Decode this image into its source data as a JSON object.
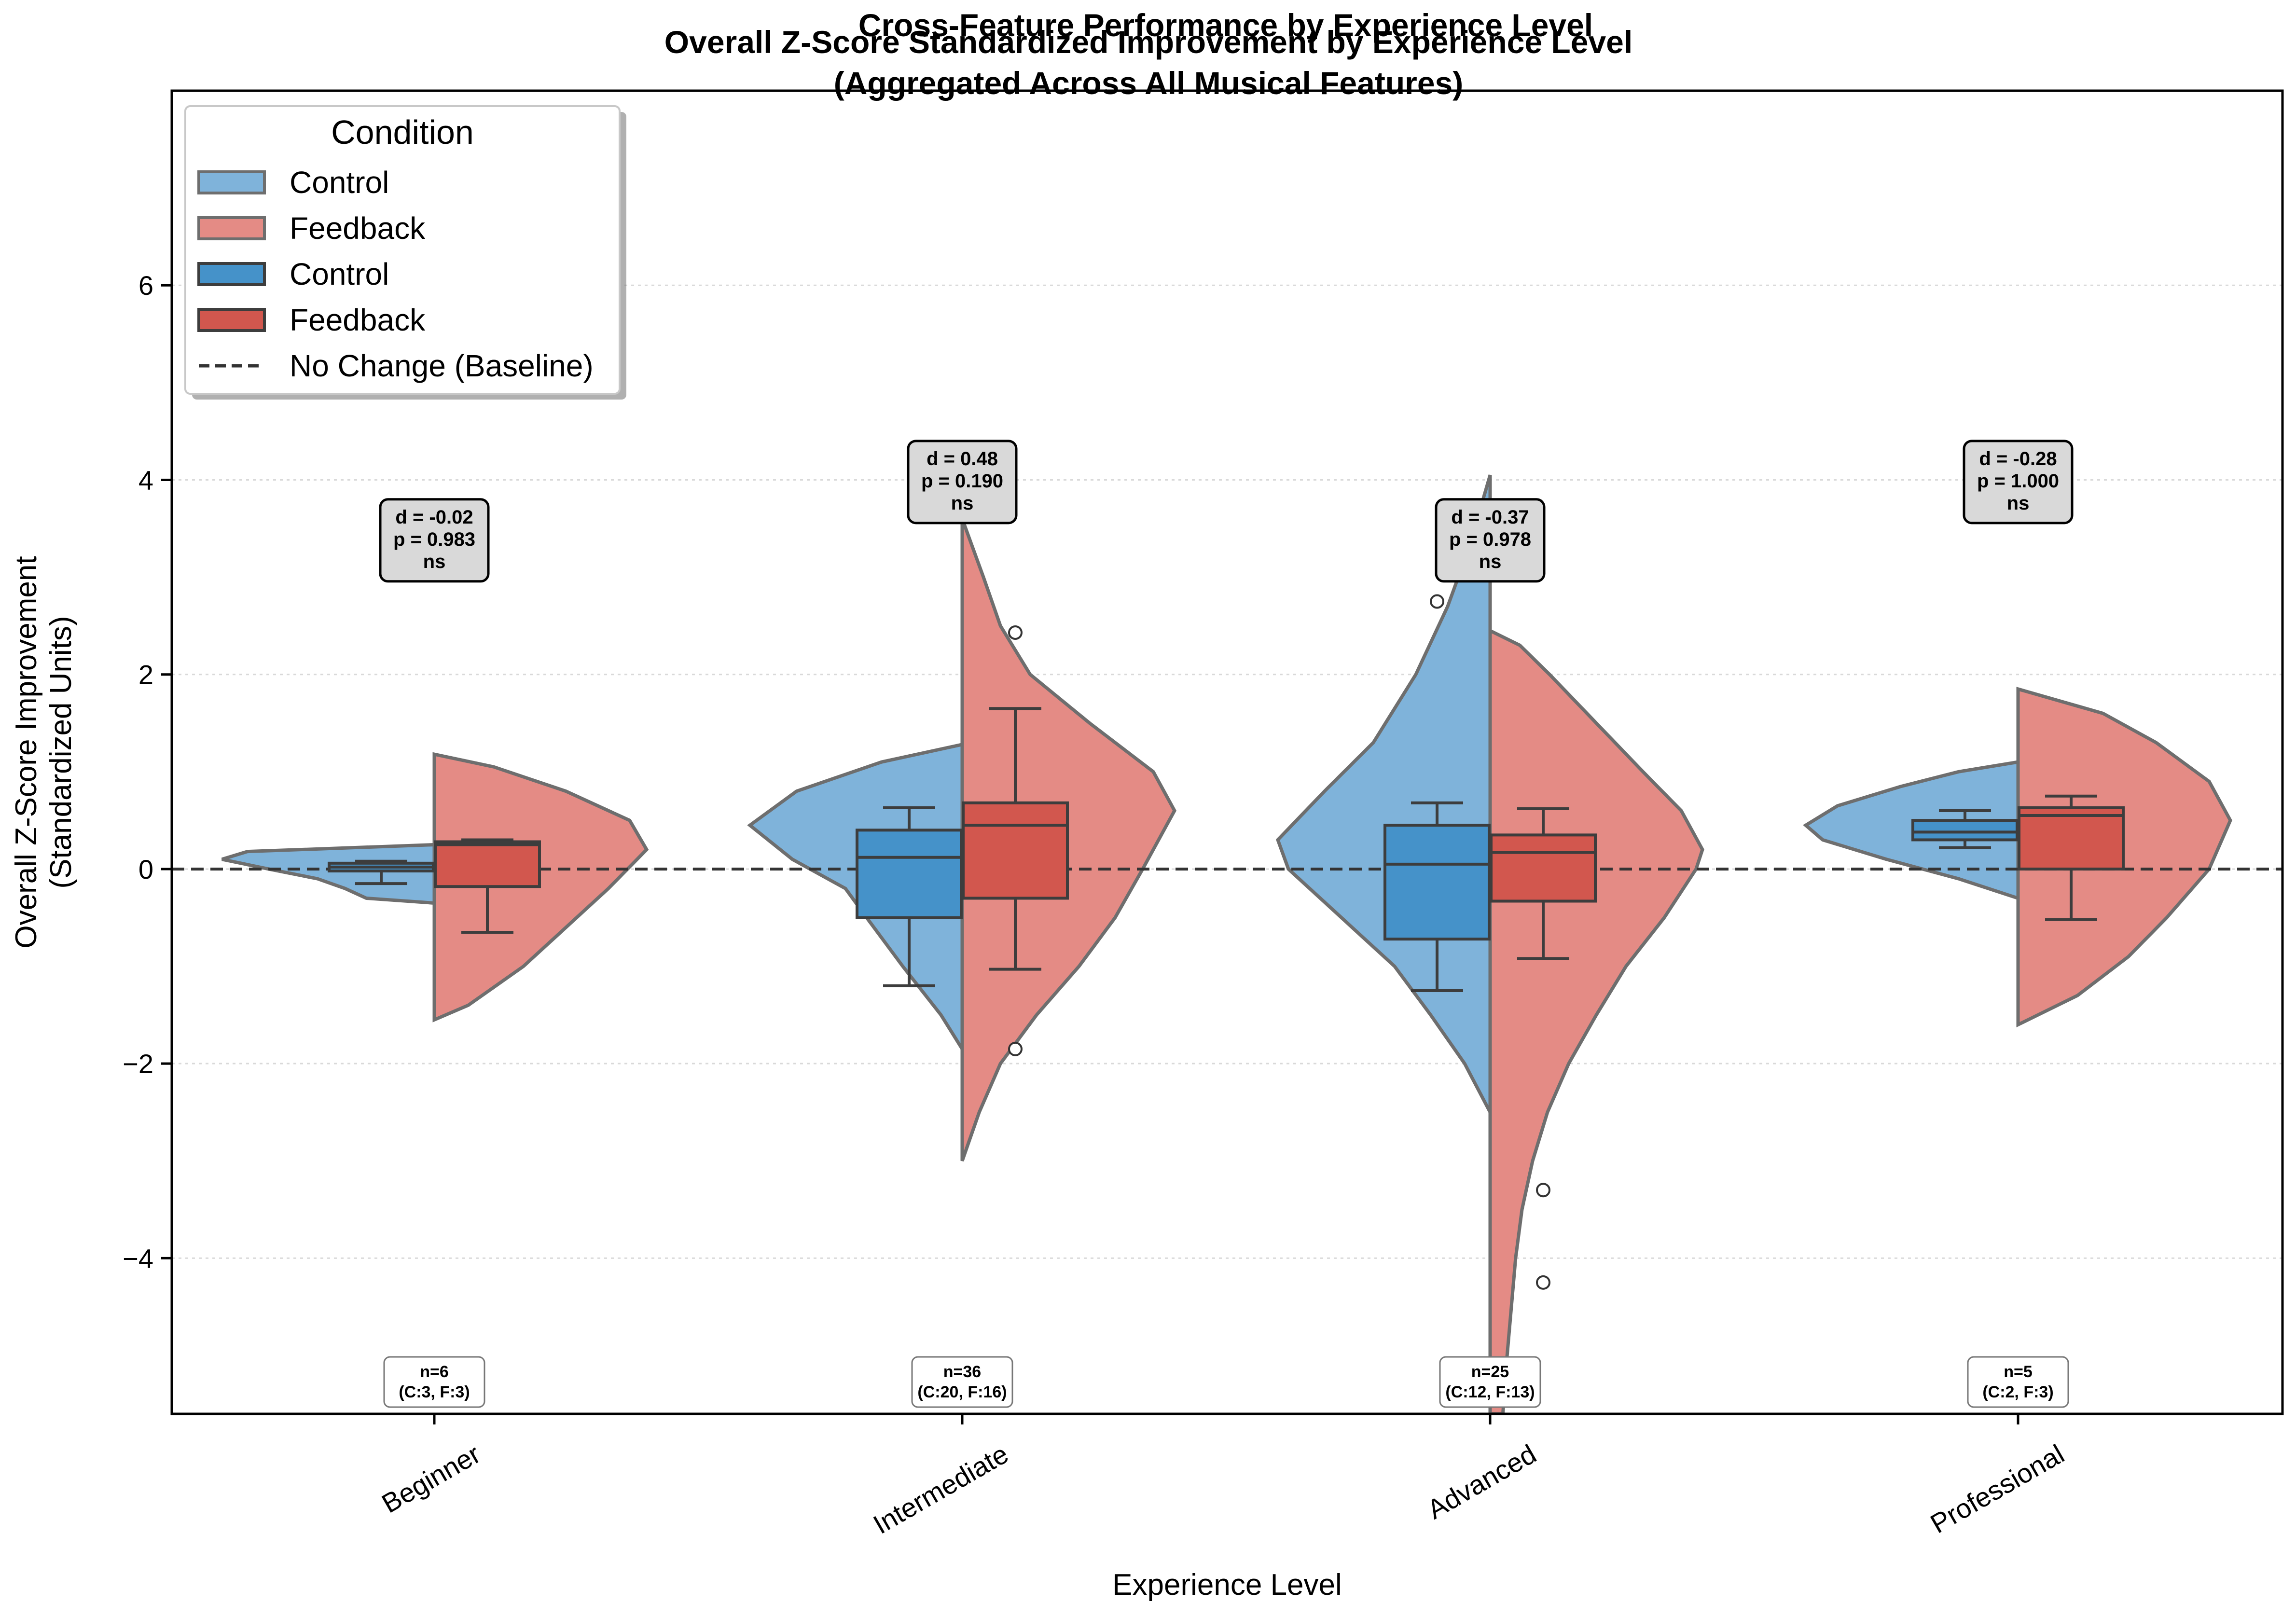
{
  "chart_data": {
    "type": "violin-box",
    "title": "Overall Z-Score Standardized Improvement by Experience Level",
    "subtitle": "(Aggregated Across All Musical Features)",
    "overlapping_title": "Cross-Feature Performance by Experience Level",
    "xlabel": "Experience Level",
    "ylabel": "Overall Z-Score Improvement",
    "ylabel_line2": "(Standardized Units)",
    "ylim": [
      -5.6,
      8.0
    ],
    "yticks": [
      -4,
      -2,
      0,
      2,
      4,
      6
    ],
    "ytick_labels": [
      "−4",
      "−2",
      "0",
      "2",
      "4",
      "6"
    ],
    "baseline": 0,
    "grid": "horizontal-dotted",
    "categories": [
      "Beginner",
      "Intermediate",
      "Advanced",
      "Professional"
    ],
    "colors": {
      "control_violin": "#7fb3da",
      "feedback_violin": "#e48b85",
      "control_box": "#4592c9",
      "feedback_box": "#d2574e",
      "edge": "#4d4d4d"
    },
    "legend": {
      "title": "Condition",
      "position": "top-left",
      "items": [
        {
          "label": "Control",
          "kind": "violin",
          "color": "#7fb3da"
        },
        {
          "label": "Feedback",
          "kind": "violin",
          "color": "#e48b85"
        },
        {
          "label": "Control",
          "kind": "box",
          "color": "#4592c9"
        },
        {
          "label": "Feedback",
          "kind": "box",
          "color": "#d2574e"
        },
        {
          "label": "No Change (Baseline)",
          "kind": "dashed-line",
          "color": "#333333"
        }
      ]
    },
    "groups": [
      {
        "category": "Beginner",
        "stats": {
          "d": "d = -0.02",
          "p": "p = 0.983",
          "sig": "ns"
        },
        "n_label": "n=6",
        "n_detail": "(C:3, F:3)",
        "control": {
          "violin": {
            "ymin": -0.35,
            "ymax": 0.25,
            "profile": [
              [
                -0.35,
                0.0
              ],
              [
                -0.3,
                0.32
              ],
              [
                -0.2,
                0.42
              ],
              [
                -0.1,
                0.55
              ],
              [
                0.0,
                0.78
              ],
              [
                0.1,
                1.0
              ],
              [
                0.18,
                0.88
              ],
              [
                0.25,
                0.0
              ]
            ]
          },
          "box": {
            "q1": -0.02,
            "median": 0.02,
            "q3": 0.06,
            "whisker_low": -0.15,
            "whisker_high": 0.08
          },
          "outliers": []
        },
        "feedback": {
          "violin": {
            "ymin": -1.55,
            "ymax": 1.18,
            "profile": [
              [
                -1.55,
                0.0
              ],
              [
                -1.4,
                0.16
              ],
              [
                -1.0,
                0.42
              ],
              [
                -0.6,
                0.62
              ],
              [
                -0.2,
                0.82
              ],
              [
                0.2,
                1.0
              ],
              [
                0.5,
                0.92
              ],
              [
                0.8,
                0.62
              ],
              [
                1.05,
                0.28
              ],
              [
                1.18,
                0.0
              ]
            ]
          },
          "box": {
            "q1": -0.18,
            "median": 0.25,
            "q3": 0.28,
            "whisker_low": -0.65,
            "whisker_high": 0.3
          },
          "outliers": []
        }
      },
      {
        "category": "Intermediate",
        "stats": {
          "d": "d = 0.48",
          "p": "p = 0.190",
          "sig": "ns"
        },
        "n_label": "n=36",
        "n_detail": "(C:20, F:16)",
        "control": {
          "violin": {
            "ymin": -1.85,
            "ymax": 1.28,
            "profile": [
              [
                -1.85,
                0.0
              ],
              [
                -1.5,
                0.1
              ],
              [
                -1.0,
                0.28
              ],
              [
                -0.5,
                0.45
              ],
              [
                -0.2,
                0.55
              ],
              [
                0.1,
                0.8
              ],
              [
                0.45,
                1.0
              ],
              [
                0.8,
                0.78
              ],
              [
                1.1,
                0.38
              ],
              [
                1.28,
                0.0
              ]
            ]
          },
          "box": {
            "q1": -0.5,
            "median": 0.12,
            "q3": 0.4,
            "whisker_low": -1.2,
            "whisker_high": 0.63
          },
          "outliers": []
        },
        "feedback": {
          "violin": {
            "ymin": -3.0,
            "ymax": 3.6,
            "profile": [
              [
                -3.0,
                0.0
              ],
              [
                -2.5,
                0.08
              ],
              [
                -2.0,
                0.18
              ],
              [
                -1.5,
                0.35
              ],
              [
                -1.0,
                0.55
              ],
              [
                -0.5,
                0.72
              ],
              [
                0.0,
                0.85
              ],
              [
                0.6,
                1.0
              ],
              [
                1.0,
                0.9
              ],
              [
                1.5,
                0.6
              ],
              [
                2.0,
                0.32
              ],
              [
                2.5,
                0.18
              ],
              [
                3.0,
                0.1
              ],
              [
                3.6,
                0.0
              ]
            ]
          },
          "box": {
            "q1": -0.3,
            "median": 0.45,
            "q3": 0.68,
            "whisker_low": -1.03,
            "whisker_high": 1.65
          },
          "outliers": [
            -1.85,
            2.43
          ]
        }
      },
      {
        "category": "Advanced",
        "stats": {
          "d": "d = -0.37",
          "p": "p = 0.978",
          "sig": "ns"
        },
        "n_label": "n=25",
        "n_detail": "(C:12, F:13)",
        "control": {
          "violin": {
            "ymin": -2.5,
            "ymax": 4.05,
            "profile": [
              [
                -2.5,
                0.0
              ],
              [
                -2.0,
                0.12
              ],
              [
                -1.5,
                0.28
              ],
              [
                -1.0,
                0.45
              ],
              [
                -0.5,
                0.7
              ],
              [
                0.0,
                0.95
              ],
              [
                0.3,
                1.0
              ],
              [
                0.8,
                0.78
              ],
              [
                1.3,
                0.55
              ],
              [
                2.0,
                0.35
              ],
              [
                2.7,
                0.2
              ],
              [
                3.3,
                0.1
              ],
              [
                4.05,
                0.0
              ]
            ]
          },
          "box": {
            "q1": -0.72,
            "median": 0.05,
            "q3": 0.45,
            "whisker_low": -1.25,
            "whisker_high": 0.68
          },
          "outliers": [
            2.75
          ]
        },
        "feedback": {
          "violin": {
            "ymin": -5.6,
            "ymax": 2.45,
            "profile": [
              [
                -5.6,
                0.06
              ],
              [
                -5.0,
                0.08
              ],
              [
                -4.5,
                0.1
              ],
              [
                -4.0,
                0.12
              ],
              [
                -3.5,
                0.15
              ],
              [
                -3.0,
                0.2
              ],
              [
                -2.5,
                0.27
              ],
              [
                -2.0,
                0.37
              ],
              [
                -1.5,
                0.5
              ],
              [
                -1.0,
                0.64
              ],
              [
                -0.5,
                0.82
              ],
              [
                0.0,
                0.97
              ],
              [
                0.2,
                1.0
              ],
              [
                0.6,
                0.9
              ],
              [
                1.0,
                0.72
              ],
              [
                1.5,
                0.5
              ],
              [
                2.0,
                0.28
              ],
              [
                2.3,
                0.14
              ],
              [
                2.45,
                0.0
              ]
            ]
          },
          "box": {
            "q1": -0.33,
            "median": 0.17,
            "q3": 0.35,
            "whisker_low": -0.92,
            "whisker_high": 0.62
          },
          "outliers": [
            -3.3,
            -4.25
          ]
        }
      },
      {
        "category": "Professional",
        "stats": {
          "d": "d = -0.28",
          "p": "p = 1.000",
          "sig": "ns"
        },
        "n_label": "n=5",
        "n_detail": "(C:2, F:3)",
        "control": {
          "violin": {
            "ymin": -0.3,
            "ymax": 1.1,
            "profile": [
              [
                -0.3,
                0.0
              ],
              [
                -0.1,
                0.28
              ],
              [
                0.1,
                0.62
              ],
              [
                0.3,
                0.92
              ],
              [
                0.45,
                1.0
              ],
              [
                0.65,
                0.85
              ],
              [
                0.85,
                0.55
              ],
              [
                1.0,
                0.28
              ],
              [
                1.1,
                0.0
              ]
            ]
          },
          "box": {
            "q1": 0.3,
            "median": 0.38,
            "q3": 0.5,
            "whisker_low": 0.22,
            "whisker_high": 0.6
          },
          "outliers": []
        },
        "feedback": {
          "violin": {
            "ymin": -1.6,
            "ymax": 1.85,
            "profile": [
              [
                -1.6,
                0.0
              ],
              [
                -1.3,
                0.28
              ],
              [
                -0.9,
                0.52
              ],
              [
                -0.5,
                0.7
              ],
              [
                0.0,
                0.9
              ],
              [
                0.5,
                1.0
              ],
              [
                0.9,
                0.9
              ],
              [
                1.3,
                0.65
              ],
              [
                1.6,
                0.4
              ],
              [
                1.85,
                0.0
              ]
            ]
          },
          "box": {
            "q1": 0.0,
            "median": 0.55,
            "q3": 0.63,
            "whisker_low": -0.52,
            "whisker_high": 0.75
          },
          "outliers": []
        }
      }
    ]
  }
}
